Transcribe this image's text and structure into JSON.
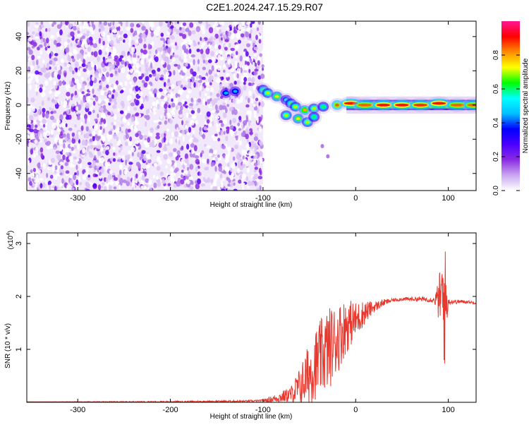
{
  "title": "C2E1.2024.247.15.29.R07",
  "chart_data": [
    {
      "type": "heatmap",
      "xlabel": "Height of straight line (km)",
      "ylabel": "Frequency (Hz)",
      "xlim": [
        -355,
        130
      ],
      "ylim": [
        -50,
        49
      ],
      "xticks": [
        -300,
        -200,
        -100,
        0,
        100
      ],
      "yticks": [
        -40,
        -20,
        0,
        20,
        40
      ],
      "colorbar": {
        "label": "Normalized spectral amplitude",
        "range": [
          0,
          1
        ],
        "ticks": [
          0.0,
          0.2,
          0.4,
          0.6,
          0.8
        ],
        "tick_labels": [
          "0.0",
          "0.2",
          "0.4",
          "0.6",
          "0.8"
        ],
        "colormap": [
          "#ffffff",
          "#c9a6f0",
          "#8a2be2",
          "#4b00ff",
          "#0000ff",
          "#00bfff",
          "#00ffff",
          "#00ff00",
          "#ffff00",
          "#ff8c00",
          "#ff0000",
          "#ff1493"
        ]
      },
      "noise_region": {
        "x_range": [
          -355,
          -100
        ],
        "freq_range": [
          -50,
          49
        ],
        "typical_amplitude": 0.1
      },
      "signal_track": [
        {
          "x": -140,
          "freq": 7,
          "amplitude": 0.45
        },
        {
          "x": -130,
          "freq": 8,
          "amplitude": 0.45
        },
        {
          "x": -100,
          "freq": 9,
          "amplitude": 0.6
        },
        {
          "x": -95,
          "freq": 7,
          "amplitude": 0.7
        },
        {
          "x": -85,
          "freq": 5,
          "amplitude": 0.75
        },
        {
          "x": -75,
          "freq": 3,
          "amplitude": 0.5
        },
        {
          "x": -70,
          "freq": 1,
          "amplitude": 0.6
        },
        {
          "x": -65,
          "freq": -1,
          "amplitude": 0.7
        },
        {
          "x": -55,
          "freq": -3,
          "amplitude": 0.8
        },
        {
          "x": -45,
          "freq": -2,
          "amplitude": 0.7
        },
        {
          "x": -35,
          "freq": -1,
          "amplitude": 0.6
        },
        {
          "x": -20,
          "freq": 0,
          "amplitude": 0.85
        },
        {
          "x": -5,
          "freq": 1,
          "amplitude": 0.9
        },
        {
          "x": 10,
          "freq": 0,
          "amplitude": 0.85
        },
        {
          "x": 30,
          "freq": 0,
          "amplitude": 0.9
        },
        {
          "x": 50,
          "freq": 0,
          "amplitude": 0.9
        },
        {
          "x": 70,
          "freq": 0,
          "amplitude": 0.88
        },
        {
          "x": 90,
          "freq": 1,
          "amplitude": 0.9
        },
        {
          "x": 110,
          "freq": 0,
          "amplitude": 0.85
        },
        {
          "x": 128,
          "freq": 0,
          "amplitude": 0.85
        }
      ],
      "lower_branch": [
        {
          "x": -75,
          "freq": -6,
          "amplitude": 0.7
        },
        {
          "x": -62,
          "freq": -8,
          "amplitude": 0.75
        },
        {
          "x": -52,
          "freq": -10,
          "amplitude": 0.7
        },
        {
          "x": -45,
          "freq": -7,
          "amplitude": 0.6
        }
      ],
      "isolated_points": [
        {
          "x": -36,
          "freq": -24,
          "amplitude": 0.15
        },
        {
          "x": -30,
          "freq": -30,
          "amplitude": 0.2
        }
      ]
    },
    {
      "type": "line",
      "xlabel": "Height of straight line (km)",
      "ylabel": "SNR (10 * v/v)",
      "yscale_label": "(x10",
      "yscale_exponent": "4",
      "yscale_close": ")",
      "xlim": [
        -355,
        130
      ],
      "ylim": [
        0,
        3.2
      ],
      "xticks": [
        -300,
        -200,
        -100,
        0,
        100
      ],
      "yticks": [
        1,
        2,
        3
      ],
      "series": [
        {
          "color": "#e8392f",
          "points": [
            [
              -355,
              0.01
            ],
            [
              -300,
              0.01
            ],
            [
              -200,
              0.01
            ],
            [
              -120,
              0.02
            ],
            [
              -100,
              0.03
            ],
            [
              -90,
              0.06
            ],
            [
              -80,
              0.1
            ],
            [
              -70,
              0.15
            ],
            [
              -60,
              0.3
            ],
            [
              -50,
              0.55
            ],
            [
              -40,
              0.8
            ],
            [
              -30,
              1.0
            ],
            [
              -20,
              1.2
            ],
            [
              -10,
              1.45
            ],
            [
              0,
              1.55
            ],
            [
              10,
              1.7
            ],
            [
              20,
              1.8
            ],
            [
              30,
              1.88
            ],
            [
              40,
              1.93
            ],
            [
              50,
              1.95
            ],
            [
              60,
              1.95
            ],
            [
              70,
              1.95
            ],
            [
              80,
              1.94
            ],
            [
              88,
              1.93
            ],
            [
              92,
              2.0
            ],
            [
              95,
              1.9
            ],
            [
              98,
              1.85
            ],
            [
              100,
              1.9
            ],
            [
              110,
              1.9
            ],
            [
              120,
              1.9
            ],
            [
              128,
              1.88
            ]
          ],
          "noise_amplitude": [
            [
              -355,
              0.0
            ],
            [
              -100,
              0.02
            ],
            [
              -70,
              0.15
            ],
            [
              -50,
              0.6
            ],
            [
              -30,
              0.8
            ],
            [
              -15,
              0.6
            ],
            [
              0,
              0.35
            ],
            [
              20,
              0.1
            ],
            [
              40,
              0.03
            ],
            [
              85,
              0.05
            ],
            [
              92,
              0.6
            ],
            [
              96,
              1.3
            ],
            [
              100,
              0.05
            ],
            [
              130,
              0.02
            ]
          ]
        }
      ]
    }
  ]
}
